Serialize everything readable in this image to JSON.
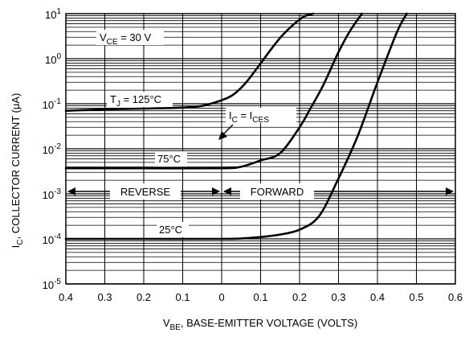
{
  "chart_data": {
    "type": "line",
    "title": "",
    "xlabel": "V",
    "xlabel_sub": "BE",
    "xlabel_rest": ", BASE-EMITTER VOLTAGE (VOLTS)",
    "ylabel": "I",
    "ylabel_sub": "C",
    "ylabel_rest": ", COLLECTOR CURRENT (μA)",
    "x_tick_labels": [
      "0.4",
      "0.3",
      "0.2",
      "0.1",
      "0",
      "0.1",
      "0.2",
      "0.3",
      "0.4",
      "0.5",
      "0.6"
    ],
    "x_signed_range": [
      -0.4,
      0.6
    ],
    "y_scale": "log",
    "ylim": [
      1e-05,
      10
    ],
    "y_tick_labels": [
      {
        "base": "10",
        "exp": "1"
      },
      {
        "base": "10",
        "exp": "0"
      },
      {
        "base": "10",
        "exp": "-1"
      },
      {
        "base": "10",
        "exp": "-2"
      },
      {
        "base": "10",
        "exp": "-3"
      },
      {
        "base": "10",
        "exp": "-4"
      },
      {
        "base": "10",
        "exp": "-5"
      }
    ],
    "grid": true,
    "annotations": {
      "vce": {
        "main": "V",
        "sub": "CE",
        "rest": " = 30 V"
      },
      "tj": {
        "main": "T",
        "sub": "J",
        "rest": " = 125°C"
      },
      "ic_ices": {
        "main": "I",
        "sub": "C",
        "mid": " = I",
        "sub2": "CES"
      },
      "t75": "75°C",
      "t25": "25°C",
      "reverse": "REVERSE",
      "forward": "FORWARD"
    },
    "series": [
      {
        "label": "125°C",
        "x": [
          -0.4,
          -0.3,
          -0.2,
          -0.1,
          -0.05,
          0.0,
          0.03,
          0.06,
          0.09,
          0.12,
          0.15,
          0.18,
          0.21,
          0.235
        ],
        "y": [
          0.07,
          0.075,
          0.078,
          0.082,
          0.09,
          0.12,
          0.16,
          0.28,
          0.6,
          1.35,
          2.9,
          5.3,
          8.5,
          10
        ]
      },
      {
        "label": "75°C",
        "x": [
          -0.4,
          -0.2,
          0.0,
          0.05,
          0.1,
          0.15,
          0.2,
          0.23,
          0.26,
          0.3,
          0.33,
          0.36
        ],
        "y": [
          0.0037,
          0.0037,
          0.0037,
          0.004,
          0.0055,
          0.008,
          0.03,
          0.085,
          0.25,
          1.4,
          4.2,
          10
        ]
      },
      {
        "label": "25°C",
        "x": [
          -0.4,
          -0.2,
          0.0,
          0.05,
          0.1,
          0.15,
          0.2,
          0.25,
          0.3,
          0.35,
          0.4,
          0.45,
          0.475
        ],
        "y": [
          0.0001,
          0.0001,
          0.0001,
          0.000102,
          0.00011,
          0.000125,
          0.00016,
          0.00032,
          0.0022,
          0.02,
          0.3,
          3.9,
          10
        ]
      }
    ]
  }
}
